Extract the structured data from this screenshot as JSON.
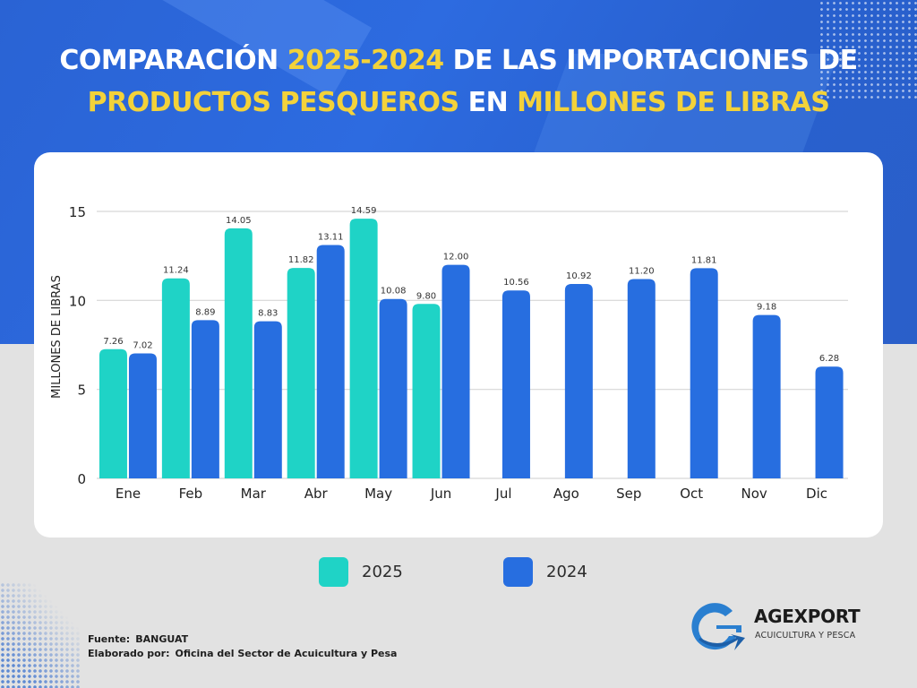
{
  "title": {
    "line1": [
      {
        "text": "COMPARACIÓN ",
        "highlight": false
      },
      {
        "text": "2025-2024",
        "highlight": true
      },
      {
        "text": " DE LAS IMPORTACIONES DE",
        "highlight": false
      }
    ],
    "line2": [
      {
        "text": "PRODUCTOS PESQUEROS",
        "highlight": true
      },
      {
        "text": " EN ",
        "highlight": false
      },
      {
        "text": "MILLONES DE LIBRAS",
        "highlight": true
      }
    ]
  },
  "colors": {
    "series_2025": "#1fd3c6",
    "series_2024": "#276ee0",
    "title_highlight": "#f3d23a",
    "title_text": "#ffffff"
  },
  "chart_data": {
    "type": "bar",
    "title": "COMPARACIÓN 2025-2024 DE LAS IMPORTACIONES DE PRODUCTOS PESQUEROS EN MILLONES DE LIBRAS",
    "xlabel": "",
    "ylabel": "MILLONES DE LIBRAS",
    "ylim": [
      0,
      15
    ],
    "yticks": [
      0,
      5,
      10,
      15
    ],
    "grid": true,
    "legend_position": "bottom",
    "categories": [
      "Ene",
      "Feb",
      "Mar",
      "Abr",
      "May",
      "Jun",
      "Jul",
      "Ago",
      "Sep",
      "Oct",
      "Nov",
      "Dic"
    ],
    "series": [
      {
        "name": "2025",
        "color": "#1fd3c6",
        "values": [
          7.26,
          11.24,
          14.05,
          11.82,
          14.59,
          9.8,
          null,
          null,
          null,
          null,
          null,
          null
        ],
        "labels": [
          "7.26",
          "11.24",
          "14.05",
          "11.82",
          "14.59",
          "9.80",
          null,
          null,
          null,
          null,
          null,
          null
        ]
      },
      {
        "name": "2024",
        "color": "#276ee0",
        "values": [
          7.02,
          8.89,
          8.83,
          13.11,
          10.08,
          12.0,
          10.56,
          10.92,
          11.2,
          11.81,
          9.18,
          6.28
        ],
        "labels": [
          "7.02",
          "8.89",
          "8.83",
          "13.11",
          "10.08",
          "12.00",
          "10.56",
          "10.92",
          "11.20",
          "11.81",
          "9.18",
          "6.28"
        ]
      }
    ]
  },
  "legend": [
    {
      "label": "2025",
      "color": "#1fd3c6"
    },
    {
      "label": "2024",
      "color": "#276ee0"
    }
  ],
  "footer": {
    "source_label": "Fuente:",
    "source_value": "BANGUAT",
    "author_label": "Elaborado por:",
    "author_value": "Oficina del Sector de Acuicultura y Pesa"
  },
  "logo": {
    "name": "AGEXPORT",
    "subtitle": "ACUICULTURA Y PESCA",
    "icon": "agexport-g-arrow-icon"
  }
}
